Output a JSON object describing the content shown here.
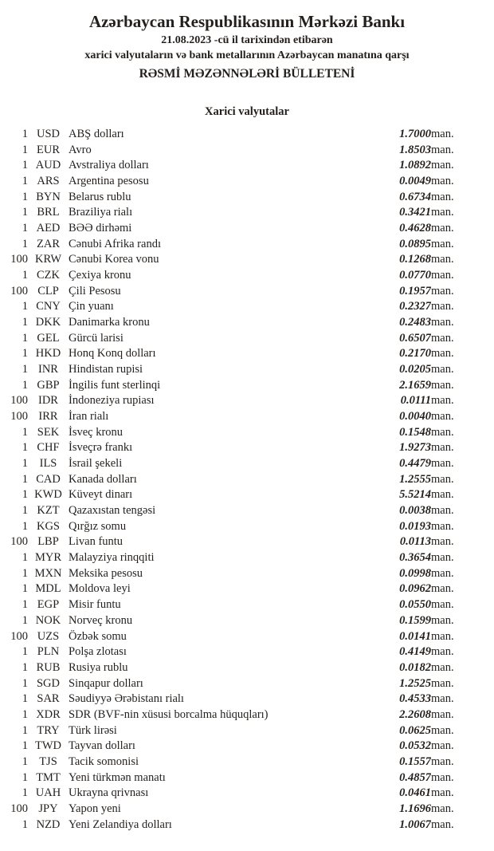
{
  "header": {
    "bank_title": "Azərbaycan Respublikasının Mərkəzi Bankı",
    "date_line": "21.08.2023 -cü il tarixindən etibarən",
    "subject_line": "xarici valyutaların və bank metallarının Azərbaycan manatına qarşı",
    "bulletin_title": "RƏSMİ MƏZƏNNƏLƏRİ BÜLLETENİ"
  },
  "section": {
    "title": "Xarici valyutalar"
  },
  "table": {
    "unit_label": "man.",
    "rows": [
      {
        "qty": "1",
        "code": "USD",
        "name": "ABŞ dolları",
        "rate": "1.7000"
      },
      {
        "qty": "1",
        "code": "EUR",
        "name": "Avro",
        "rate": "1.8503"
      },
      {
        "qty": "1",
        "code": "AUD",
        "name": "Avstraliya dolları",
        "rate": "1.0892"
      },
      {
        "qty": "1",
        "code": "ARS",
        "name": "Argentina pesosu",
        "rate": "0.0049"
      },
      {
        "qty": "1",
        "code": "BYN",
        "name": "Belarus rublu",
        "rate": "0.6734"
      },
      {
        "qty": "1",
        "code": "BRL",
        "name": "Braziliya rialı",
        "rate": "0.3421"
      },
      {
        "qty": "1",
        "code": "AED",
        "name": "BƏƏ dirhəmi",
        "rate": "0.4628"
      },
      {
        "qty": "1",
        "code": "ZAR",
        "name": "Cənubi Afrika randı",
        "rate": "0.0895"
      },
      {
        "qty": "100",
        "code": "KRW",
        "name": "Cənubi Korea vonu",
        "rate": "0.1268"
      },
      {
        "qty": "1",
        "code": "CZK",
        "name": "Çexiya kronu",
        "rate": "0.0770"
      },
      {
        "qty": "100",
        "code": "CLP",
        "name": "Çili Pesosu",
        "rate": "0.1957"
      },
      {
        "qty": "1",
        "code": "CNY",
        "name": "Çin yuanı",
        "rate": "0.2327"
      },
      {
        "qty": "1",
        "code": "DKK",
        "name": "Danimarka kronu",
        "rate": "0.2483"
      },
      {
        "qty": "1",
        "code": "GEL",
        "name": "Gürcü larisi",
        "rate": "0.6507"
      },
      {
        "qty": "1",
        "code": "HKD",
        "name": "Honq Konq dolları",
        "rate": "0.2170"
      },
      {
        "qty": "1",
        "code": "INR",
        "name": "Hindistan rupisi",
        "rate": "0.0205"
      },
      {
        "qty": "1",
        "code": "GBP",
        "name": "İngilis funt sterlinqi",
        "rate": "2.1659"
      },
      {
        "qty": "100",
        "code": "IDR",
        "name": "İndoneziya rupiası",
        "rate": "0.0111"
      },
      {
        "qty": "100",
        "code": "IRR",
        "name": "İran rialı",
        "rate": "0.0040"
      },
      {
        "qty": "1",
        "code": "SEK",
        "name": "İsveç kronu",
        "rate": "0.1548"
      },
      {
        "qty": "1",
        "code": "CHF",
        "name": "İsveçrə frankı",
        "rate": "1.9273"
      },
      {
        "qty": "1",
        "code": "ILS",
        "name": "İsrail şekeli",
        "rate": "0.4479"
      },
      {
        "qty": "1",
        "code": "CAD",
        "name": "Kanada dolları",
        "rate": "1.2555"
      },
      {
        "qty": "1",
        "code": "KWD",
        "name": "Küveyt dinarı",
        "rate": "5.5214"
      },
      {
        "qty": "1",
        "code": "KZT",
        "name": "Qazaxıstan tengəsi",
        "rate": "0.0038"
      },
      {
        "qty": "1",
        "code": "KGS",
        "name": "Qırğız somu",
        "rate": "0.0193"
      },
      {
        "qty": "100",
        "code": "LBP",
        "name": "Livan funtu",
        "rate": "0.0113"
      },
      {
        "qty": "1",
        "code": "MYR",
        "name": "Malayziya rinqqiti",
        "rate": "0.3654"
      },
      {
        "qty": "1",
        "code": "MXN",
        "name": "Meksika pesosu",
        "rate": "0.0998"
      },
      {
        "qty": "1",
        "code": "MDL",
        "name": "Moldova leyi",
        "rate": "0.0962"
      },
      {
        "qty": "1",
        "code": "EGP",
        "name": "Misir funtu",
        "rate": "0.0550"
      },
      {
        "qty": "1",
        "code": "NOK",
        "name": "Norveç kronu",
        "rate": "0.1599"
      },
      {
        "qty": "100",
        "code": "UZS",
        "name": "Özbək somu",
        "rate": "0.0141"
      },
      {
        "qty": "1",
        "code": "PLN",
        "name": "Polşa zlotası",
        "rate": "0.4149"
      },
      {
        "qty": "1",
        "code": "RUB",
        "name": "Rusiya rublu",
        "rate": "0.0182"
      },
      {
        "qty": "1",
        "code": "SGD",
        "name": "Sinqapur dolları",
        "rate": "1.2525"
      },
      {
        "qty": "1",
        "code": "SAR",
        "name": "Səudiyyə Ərəbistanı rialı",
        "rate": "0.4533"
      },
      {
        "qty": "1",
        "code": "XDR",
        "name": "SDR (BVF-nin xüsusi borcalma hüquqları)",
        "rate": "2.2608"
      },
      {
        "qty": "1",
        "code": "TRY",
        "name": "Türk lirəsi",
        "rate": "0.0625"
      },
      {
        "qty": "1",
        "code": "TWD",
        "name": "Tayvan dolları",
        "rate": "0.0532"
      },
      {
        "qty": "1",
        "code": "TJS",
        "name": "Tacik somonisi",
        "rate": "0.1557"
      },
      {
        "qty": "1",
        "code": "TMT",
        "name": "Yeni türkmən manatı",
        "rate": "0.4857"
      },
      {
        "qty": "1",
        "code": "UAH",
        "name": "Ukrayna qrivnası",
        "rate": "0.0461"
      },
      {
        "qty": "100",
        "code": "JPY",
        "name": "Yapon yeni",
        "rate": "1.1696"
      },
      {
        "qty": "1",
        "code": "NZD",
        "name": "Yeni Zelandiya dolları",
        "rate": "1.0067"
      }
    ]
  },
  "colors": {
    "text": "#231f1c",
    "background": "#ffffff"
  }
}
